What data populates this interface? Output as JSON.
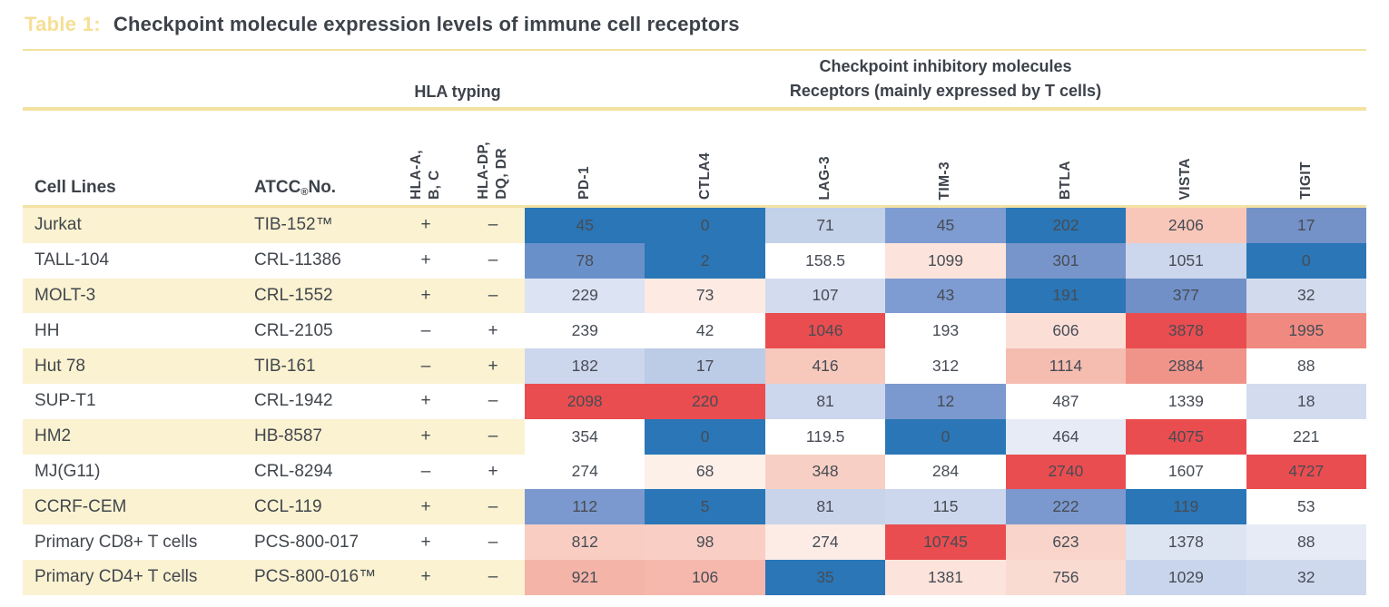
{
  "title": {
    "prefix": "Table 1:",
    "text": "Checkpoint molecule expression levels of immune cell receptors"
  },
  "group_headers": {
    "hla": "HLA typing",
    "checkpoint_line1": "Checkpoint inhibitory molecules",
    "checkpoint_line2": "Receptors (mainly expressed by T cells)"
  },
  "columns": {
    "cell_lines": "Cell Lines",
    "atcc_prefix": "ATCC",
    "atcc_reg": "®",
    "atcc_suffix": " No.",
    "hla_abc": "HLA-A,\nB, C",
    "hla_dpdqdr": "HLA-DP,\nDQ, DR",
    "receptors": [
      "PD-1",
      "CTLA4",
      "LAG-3",
      "TIM-3",
      "BTLA",
      "VISTA",
      "TIGIT"
    ]
  },
  "colors": {
    "line_yellow": "#f3e2a2",
    "row_stripe": "#fbf2d1",
    "title_label": "#f6df94",
    "heading_text": "#3d424a",
    "body_text": "#42474e",
    "value_text": "#474c55",
    "heat_low": "#2a76b6",
    "heat_mid": "#ffffff",
    "heat_high": "#ea4d4f"
  },
  "table": {
    "rows": [
      {
        "cell_line": "Jurkat",
        "atcc": "TIB-152™",
        "hla_abc": "+",
        "hla_dpdqdr": "–",
        "values": [
          {
            "v": "45",
            "c": "#2a76b6"
          },
          {
            "v": "0",
            "c": "#2a76b6"
          },
          {
            "v": "71",
            "c": "#c3d1e9"
          },
          {
            "v": "45",
            "c": "#7e9cd1"
          },
          {
            "v": "202",
            "c": "#2a76b6"
          },
          {
            "v": "2406",
            "c": "#f9c7ba"
          },
          {
            "v": "17",
            "c": "#7492c8"
          }
        ]
      },
      {
        "cell_line": "TALL-104",
        "atcc": "CRL-11386",
        "hla_abc": "+",
        "hla_dpdqdr": "–",
        "values": [
          {
            "v": "78",
            "c": "#6990c9"
          },
          {
            "v": "2",
            "c": "#2a76b6"
          },
          {
            "v": "158.5",
            "c": "#ffffff"
          },
          {
            "v": "1099",
            "c": "#fce4dc"
          },
          {
            "v": "301",
            "c": "#7795ca"
          },
          {
            "v": "1051",
            "c": "#ccd6ec"
          },
          {
            "v": "0",
            "c": "#2a76b6"
          }
        ]
      },
      {
        "cell_line": "MOLT-3",
        "atcc": "CRL-1552",
        "hla_abc": "+",
        "hla_dpdqdr": "–",
        "values": [
          {
            "v": "229",
            "c": "#dce3f2"
          },
          {
            "v": "73",
            "c": "#fdeae2"
          },
          {
            "v": "107",
            "c": "#d3dcef"
          },
          {
            "v": "43",
            "c": "#7e9cd1"
          },
          {
            "v": "191",
            "c": "#2a76b6"
          },
          {
            "v": "377",
            "c": "#7190c7"
          },
          {
            "v": "32",
            "c": "#d2dbee"
          }
        ]
      },
      {
        "cell_line": "HH",
        "atcc": "CRL-2105",
        "hla_abc": "–",
        "hla_dpdqdr": "+",
        "values": [
          {
            "v": "239",
            "c": "#ffffff"
          },
          {
            "v": "42",
            "c": "#ffffff"
          },
          {
            "v": "1046",
            "c": "#ea4d4f"
          },
          {
            "v": "193",
            "c": "#ffffff"
          },
          {
            "v": "606",
            "c": "#fbdfd7"
          },
          {
            "v": "3878",
            "c": "#ea4d4f"
          },
          {
            "v": "1995",
            "c": "#f08a80"
          }
        ]
      },
      {
        "cell_line": "Hut 78",
        "atcc": "TIB-161",
        "hla_abc": "–",
        "hla_dpdqdr": "+",
        "values": [
          {
            "v": "182",
            "c": "#ccd6ec"
          },
          {
            "v": "17",
            "c": "#bccbe6"
          },
          {
            "v": "416",
            "c": "#f7c9bd"
          },
          {
            "v": "312",
            "c": "#ffffff"
          },
          {
            "v": "1114",
            "c": "#f5bcb0"
          },
          {
            "v": "2884",
            "c": "#f0948a"
          },
          {
            "v": "88",
            "c": "#ffffff"
          }
        ]
      },
      {
        "cell_line": "SUP-T1",
        "atcc": "CRL-1942",
        "hla_abc": "+",
        "hla_dpdqdr": "–",
        "values": [
          {
            "v": "2098",
            "c": "#ea4d4f"
          },
          {
            "v": "220",
            "c": "#ea4d4f"
          },
          {
            "v": "81",
            "c": "#ccd6ec"
          },
          {
            "v": "12",
            "c": "#7b99ce"
          },
          {
            "v": "487",
            "c": "#ffffff"
          },
          {
            "v": "1339",
            "c": "#ffffff"
          },
          {
            "v": "18",
            "c": "#d3dcef"
          }
        ]
      },
      {
        "cell_line": "HM2",
        "atcc": "HB-8587",
        "hla_abc": "+",
        "hla_dpdqdr": "–",
        "values": [
          {
            "v": "354",
            "c": "#ffffff"
          },
          {
            "v": "0",
            "c": "#2a76b6"
          },
          {
            "v": "119.5",
            "c": "#ffffff"
          },
          {
            "v": "0",
            "c": "#2a76b6"
          },
          {
            "v": "464",
            "c": "#e7ebf6"
          },
          {
            "v": "4075",
            "c": "#ea4d4f"
          },
          {
            "v": "221",
            "c": "#ffffff"
          }
        ]
      },
      {
        "cell_line": "MJ(G11)",
        "atcc": "CRL-8294",
        "hla_abc": "–",
        "hla_dpdqdr": "+",
        "values": [
          {
            "v": "274",
            "c": "#ffffff"
          },
          {
            "v": "68",
            "c": "#fdf0e9"
          },
          {
            "v": "348",
            "c": "#f8cfc4"
          },
          {
            "v": "284",
            "c": "#ffffff"
          },
          {
            "v": "2740",
            "c": "#ea4d4f"
          },
          {
            "v": "1607",
            "c": "#ffffff"
          },
          {
            "v": "4727",
            "c": "#ea4d4f"
          }
        ]
      },
      {
        "cell_line": "CCRF-CEM",
        "atcc": "CCL-119",
        "hla_abc": "+",
        "hla_dpdqdr": "–",
        "values": [
          {
            "v": "112",
            "c": "#7b99ce"
          },
          {
            "v": "5",
            "c": "#2a76b6"
          },
          {
            "v": "81",
            "c": "#c9d4eb"
          },
          {
            "v": "115",
            "c": "#ccd7ed"
          },
          {
            "v": "222",
            "c": "#7b99ce"
          },
          {
            "v": "119",
            "c": "#2a76b6"
          },
          {
            "v": "53",
            "c": "#ffffff"
          }
        ]
      },
      {
        "cell_line": "Primary CD8+ T cells",
        "atcc": "PCS-800-017",
        "hla_abc": "+",
        "hla_dpdqdr": "–",
        "values": [
          {
            "v": "812",
            "c": "#f9cdc2"
          },
          {
            "v": "98",
            "c": "#f9cfc5"
          },
          {
            "v": "274",
            "c": "#fcece5"
          },
          {
            "v": "10745",
            "c": "#ea4d4f"
          },
          {
            "v": "623",
            "c": "#f9d4ca"
          },
          {
            "v": "1378",
            "c": "#dee5f2"
          },
          {
            "v": "88",
            "c": "#e6ebf6"
          }
        ]
      },
      {
        "cell_line": "Primary CD4+ T cells",
        "atcc": "PCS-800-016™",
        "hla_abc": "+",
        "hla_dpdqdr": "–",
        "values": [
          {
            "v": "921",
            "c": "#f5b4a8"
          },
          {
            "v": "106",
            "c": "#f6b8ac"
          },
          {
            "v": "35",
            "c": "#2a76b6"
          },
          {
            "v": "1381",
            "c": "#fce4dc"
          },
          {
            "v": "756",
            "c": "#fadbd1"
          },
          {
            "v": "1029",
            "c": "#c9d5ec"
          },
          {
            "v": "32",
            "c": "#cfd9ee"
          }
        ]
      }
    ]
  }
}
